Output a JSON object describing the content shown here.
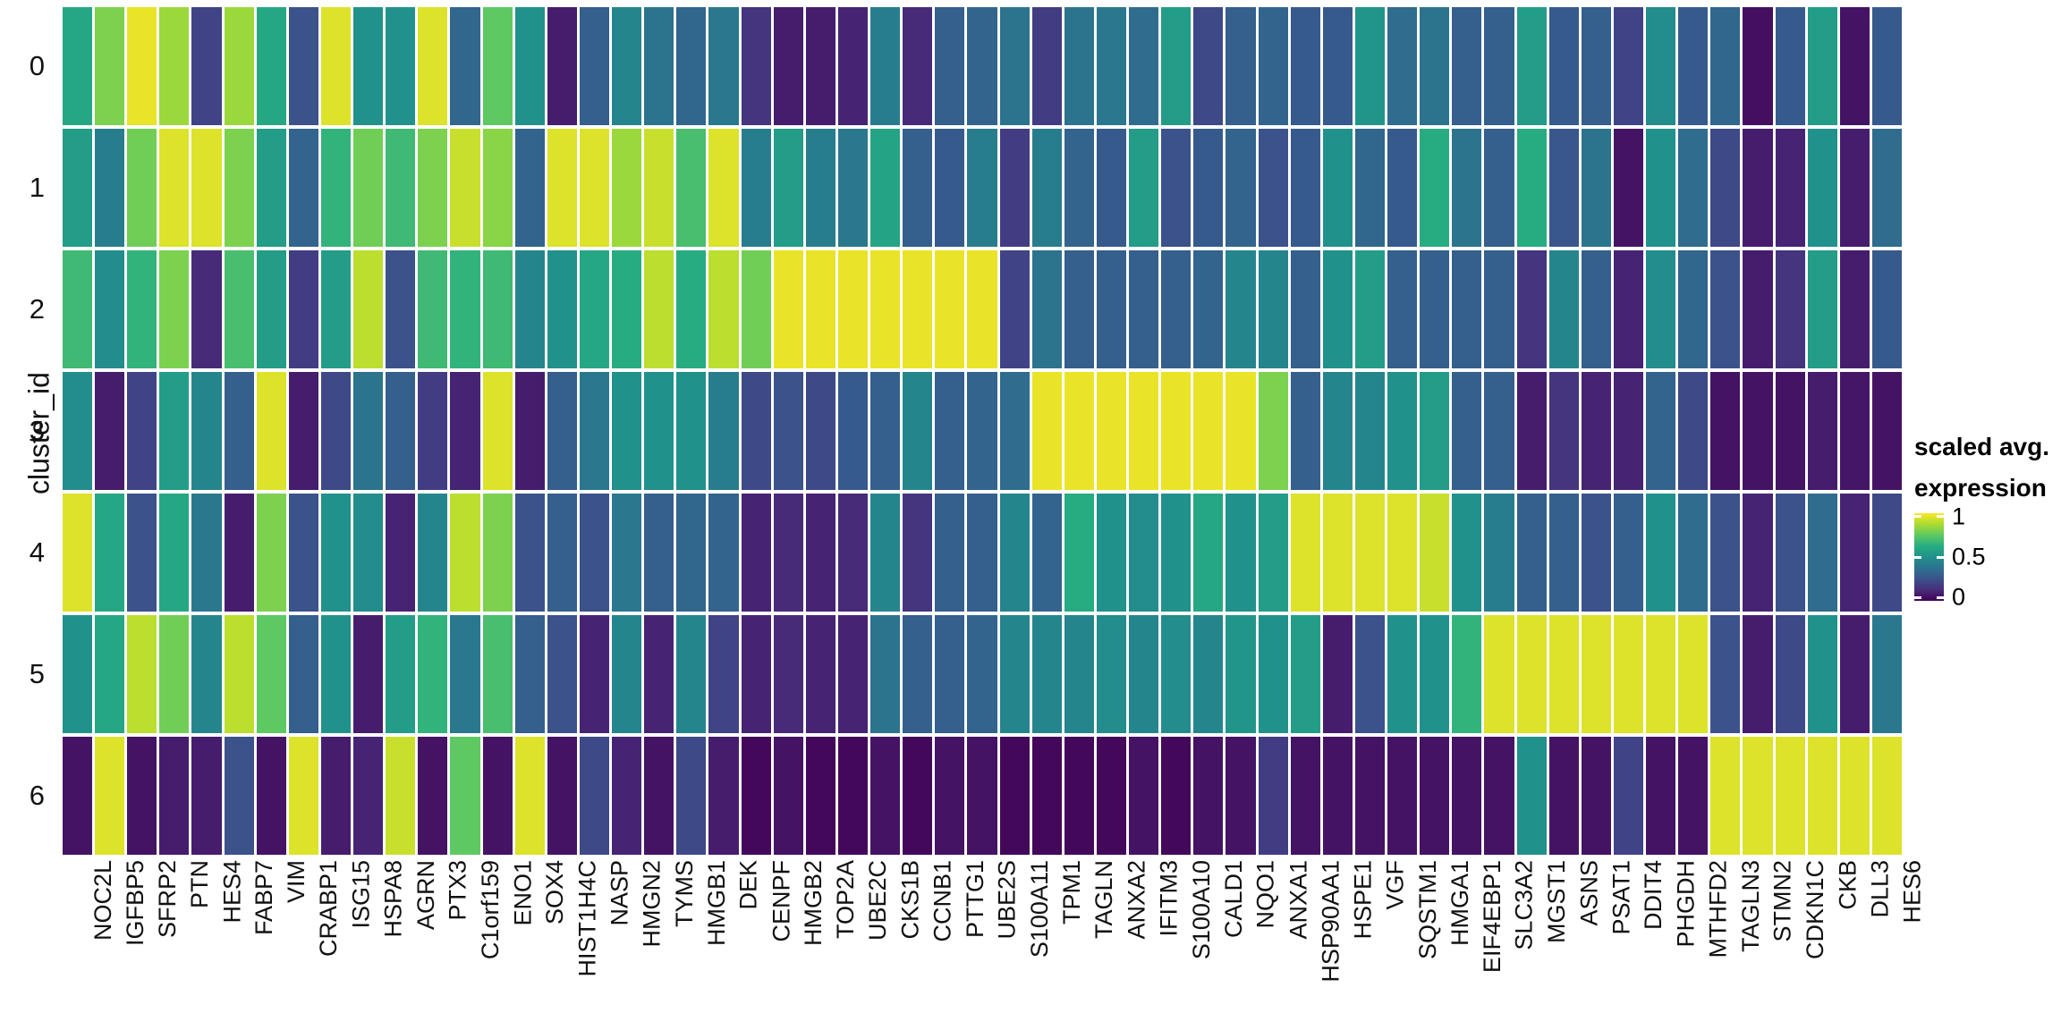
{
  "y_axis": {
    "label": "cluster_id"
  },
  "legend": {
    "title_line1": "scaled avg.",
    "title_line2": "expression",
    "ticks": [
      {
        "label": "1",
        "pos": 0.04
      },
      {
        "label": "0.5",
        "pos": 0.5
      },
      {
        "label": "0",
        "pos": 0.96
      }
    ]
  },
  "colors": {
    "viridis_stops": [
      "#440154",
      "#472d7b",
      "#3b528b",
      "#2c728e",
      "#21918c",
      "#27ad81",
      "#5ec962",
      "#aadc32",
      "#fde725"
    ],
    "background": "#ffffff",
    "text": "#111111"
  },
  "chart_data": {
    "type": "heatmap",
    "title": "",
    "xlabel": "",
    "ylabel": "cluster_id",
    "value_name": "scaled avg. expression",
    "colormap": "viridis",
    "vlim": [
      0,
      1
    ],
    "grid": false,
    "legend_position": "right",
    "categories_y": [
      "0",
      "1",
      "2",
      "3",
      "4",
      "5",
      "6"
    ],
    "categories_x": [
      "NOC2L",
      "IGFBP5",
      "SFRP2",
      "PTN",
      "HES4",
      "FABP7",
      "VIM",
      "CRABP1",
      "ISG15",
      "HSPA8",
      "AGRN",
      "PTX3",
      "C1orf159",
      "ENO1",
      "SOX4",
      "HIST1H4C",
      "NASP",
      "HMGN2",
      "TYMS",
      "HMGB1",
      "DEK",
      "CENPF",
      "HMGB2",
      "TOP2A",
      "UBE2C",
      "CKS1B",
      "CCNB1",
      "PTTG1",
      "UBE2S",
      "S100A11",
      "TPM1",
      "TAGLN",
      "ANXA2",
      "IFITM3",
      "S100A10",
      "CALD1",
      "NQO1",
      "ANXA1",
      "HSP90AA1",
      "HSPE1",
      "VGF",
      "SQSTM1",
      "HMGA1",
      "EIF4EBP1",
      "SLC3A2",
      "MGST1",
      "ASNS",
      "PSAT1",
      "DDIT4",
      "PHGDH",
      "MTHFD2",
      "TAGLN3",
      "STMN2",
      "CDKN1C",
      "CKB",
      "DLL3",
      "HES6"
    ],
    "values": [
      [
        0.6,
        0.8,
        0.97,
        0.85,
        0.2,
        0.85,
        0.6,
        0.25,
        0.95,
        0.5,
        0.5,
        0.95,
        0.33,
        0.75,
        0.5,
        0.08,
        0.3,
        0.45,
        0.38,
        0.33,
        0.4,
        0.15,
        0.08,
        0.08,
        0.1,
        0.42,
        0.12,
        0.3,
        0.32,
        0.38,
        0.18,
        0.38,
        0.4,
        0.35,
        0.55,
        0.22,
        0.3,
        0.32,
        0.28,
        0.28,
        0.52,
        0.35,
        0.38,
        0.3,
        0.3,
        0.55,
        0.28,
        0.3,
        0.2,
        0.48,
        0.28,
        0.33,
        0.04,
        0.28,
        0.55,
        0.05,
        0.28
      ],
      [
        0.55,
        0.42,
        0.78,
        0.95,
        0.95,
        0.8,
        0.55,
        0.32,
        0.65,
        0.78,
        0.68,
        0.8,
        0.92,
        0.82,
        0.32,
        0.95,
        0.95,
        0.85,
        0.92,
        0.7,
        0.95,
        0.42,
        0.55,
        0.42,
        0.4,
        0.58,
        0.3,
        0.28,
        0.42,
        0.18,
        0.42,
        0.32,
        0.28,
        0.55,
        0.25,
        0.28,
        0.32,
        0.25,
        0.28,
        0.5,
        0.33,
        0.28,
        0.62,
        0.38,
        0.3,
        0.62,
        0.27,
        0.38,
        0.05,
        0.5,
        0.35,
        0.22,
        0.08,
        0.1,
        0.5,
        0.08,
        0.35
      ],
      [
        0.68,
        0.48,
        0.65,
        0.8,
        0.12,
        0.7,
        0.55,
        0.18,
        0.55,
        0.9,
        0.25,
        0.68,
        0.65,
        0.68,
        0.45,
        0.5,
        0.6,
        0.62,
        0.9,
        0.62,
        0.9,
        0.78,
        0.97,
        0.97,
        0.97,
        0.97,
        0.97,
        0.97,
        0.97,
        0.2,
        0.38,
        0.3,
        0.3,
        0.3,
        0.3,
        0.32,
        0.45,
        0.45,
        0.3,
        0.5,
        0.55,
        0.3,
        0.3,
        0.3,
        0.3,
        0.15,
        0.45,
        0.3,
        0.1,
        0.48,
        0.33,
        0.25,
        0.08,
        0.15,
        0.55,
        0.08,
        0.28
      ],
      [
        0.48,
        0.08,
        0.2,
        0.55,
        0.45,
        0.3,
        0.95,
        0.08,
        0.22,
        0.38,
        0.3,
        0.18,
        0.1,
        0.95,
        0.08,
        0.3,
        0.4,
        0.5,
        0.5,
        0.5,
        0.42,
        0.22,
        0.25,
        0.22,
        0.28,
        0.3,
        0.45,
        0.3,
        0.32,
        0.35,
        0.97,
        0.97,
        0.97,
        0.97,
        0.97,
        0.97,
        0.97,
        0.8,
        0.3,
        0.45,
        0.45,
        0.5,
        0.55,
        0.3,
        0.3,
        0.08,
        0.15,
        0.1,
        0.1,
        0.32,
        0.22,
        0.05,
        0.05,
        0.05,
        0.08,
        0.06,
        0.05
      ],
      [
        0.95,
        0.6,
        0.25,
        0.6,
        0.4,
        0.08,
        0.8,
        0.25,
        0.5,
        0.48,
        0.1,
        0.45,
        0.9,
        0.8,
        0.25,
        0.3,
        0.25,
        0.4,
        0.3,
        0.33,
        0.32,
        0.1,
        0.12,
        0.1,
        0.12,
        0.45,
        0.15,
        0.3,
        0.3,
        0.45,
        0.32,
        0.62,
        0.5,
        0.48,
        0.5,
        0.6,
        0.5,
        0.55,
        0.95,
        0.95,
        0.95,
        0.95,
        0.92,
        0.5,
        0.42,
        0.3,
        0.3,
        0.25,
        0.3,
        0.5,
        0.35,
        0.25,
        0.1,
        0.25,
        0.35,
        0.1,
        0.22
      ],
      [
        0.5,
        0.6,
        0.9,
        0.78,
        0.45,
        0.9,
        0.75,
        0.3,
        0.5,
        0.08,
        0.55,
        0.65,
        0.4,
        0.7,
        0.3,
        0.25,
        0.1,
        0.45,
        0.1,
        0.45,
        0.2,
        0.1,
        0.12,
        0.1,
        0.1,
        0.38,
        0.3,
        0.3,
        0.32,
        0.45,
        0.45,
        0.45,
        0.48,
        0.45,
        0.48,
        0.45,
        0.52,
        0.5,
        0.55,
        0.08,
        0.25,
        0.5,
        0.5,
        0.65,
        0.95,
        0.95,
        0.95,
        0.95,
        0.95,
        0.95,
        0.95,
        0.25,
        0.08,
        0.22,
        0.5,
        0.08,
        0.4
      ],
      [
        0.05,
        0.95,
        0.05,
        0.08,
        0.08,
        0.25,
        0.05,
        0.95,
        0.08,
        0.1,
        0.92,
        0.05,
        0.75,
        0.05,
        0.95,
        0.05,
        0.22,
        0.1,
        0.05,
        0.22,
        0.08,
        0.02,
        0.05,
        0.02,
        0.02,
        0.05,
        0.02,
        0.05,
        0.05,
        0.02,
        0.02,
        0.02,
        0.02,
        0.05,
        0.02,
        0.05,
        0.05,
        0.18,
        0.05,
        0.05,
        0.05,
        0.05,
        0.05,
        0.05,
        0.05,
        0.5,
        0.05,
        0.05,
        0.2,
        0.05,
        0.05,
        0.95,
        0.95,
        0.95,
        0.95,
        0.95,
        0.95
      ]
    ]
  }
}
